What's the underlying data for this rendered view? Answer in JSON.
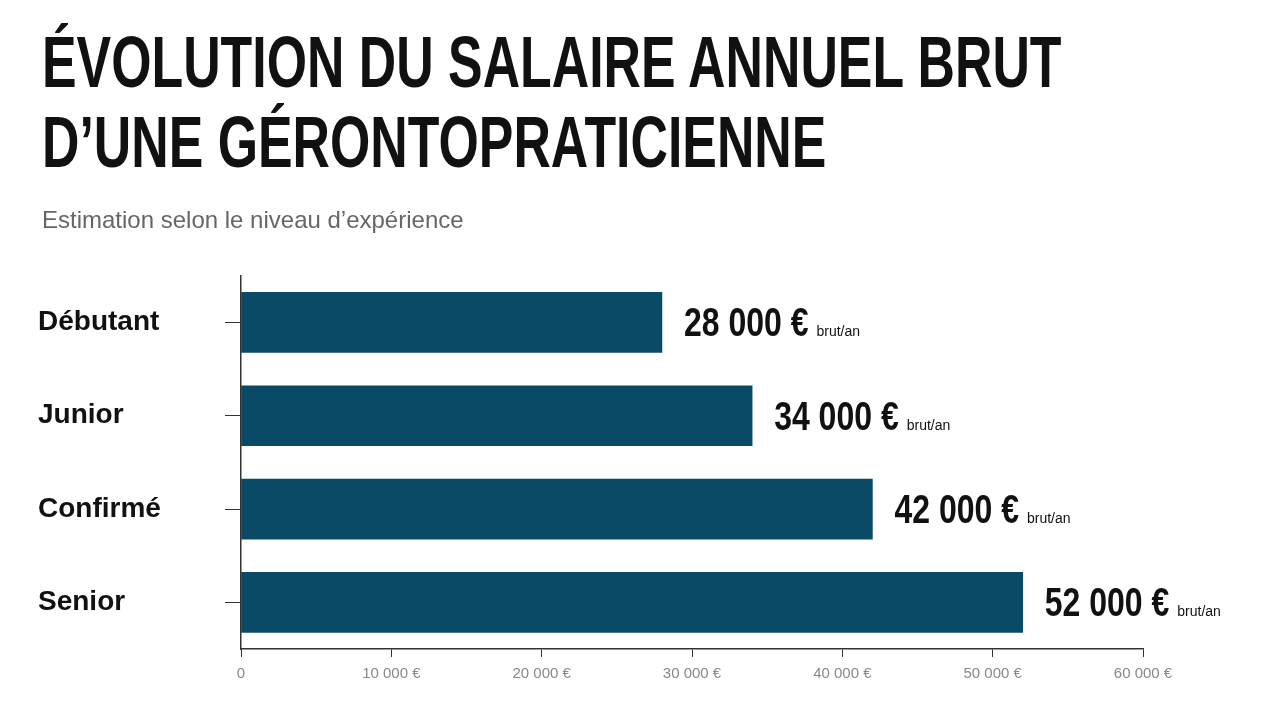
{
  "chart_data": {
    "type": "bar",
    "orientation": "horizontal",
    "title": "ÉVOLUTION DU SALAIRE ANNUEL BRUT D’UNE GÉRONTOPRATICIENNE",
    "subtitle": "Estimation selon le niveau d’expérience",
    "categories": [
      "Débutant",
      "Junior",
      "Confirmé",
      "Senior"
    ],
    "values": [
      28000,
      34000,
      42000,
      52000
    ],
    "value_labels": [
      "28 000 € brut/an",
      "34 000 € brut/an",
      "42 000 € brut/an",
      "52 000 € brut/an"
    ],
    "color": "#0b4a66",
    "xlim": [
      0,
      60000
    ],
    "xticks": [
      0,
      {
        "value": 10000,
        "label": "10 000 €"
      },
      {
        "value": 20000,
        "label": "20 000 €"
      },
      {
        "value": 30000,
        "label": "30 000 €"
      },
      {
        "value": 40000,
        "label": "40 000 €"
      },
      {
        "value": 50000,
        "label": "50 000 €"
      },
      {
        "value": 60000,
        "label": "60 000 €"
      }
    ],
    "grid": false,
    "legend": false
  }
}
